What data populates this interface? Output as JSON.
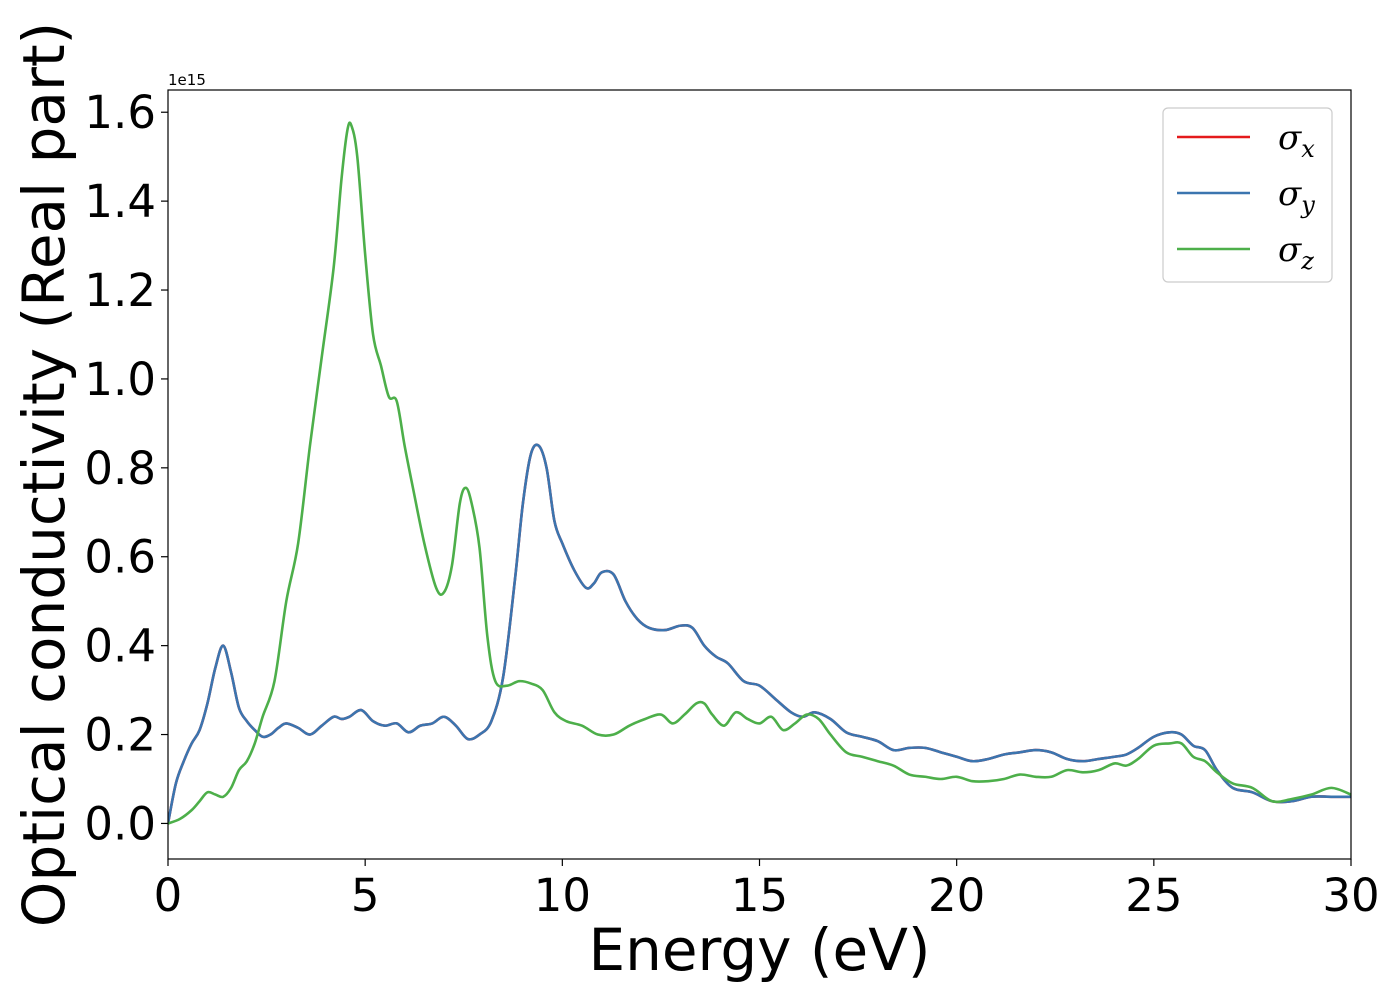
{
  "chart_data": {
    "type": "line",
    "xlabel": "Energy (eV)",
    "ylabel": "Optical conductivity (Real part)",
    "y_offset_label": "1e15",
    "xlim": [
      0,
      30
    ],
    "ylim": [
      -0.08,
      1.65
    ],
    "x_ticks": [
      0,
      5,
      10,
      15,
      20,
      25,
      30
    ],
    "y_ticks": [
      0.0,
      0.2,
      0.4,
      0.6,
      0.8,
      1.0,
      1.2,
      1.4,
      1.6
    ],
    "x_tick_labels": [
      "0",
      "5",
      "10",
      "15",
      "20",
      "25",
      "30"
    ],
    "y_tick_labels": [
      "0.0",
      "0.2",
      "0.4",
      "0.6",
      "0.8",
      "1.0",
      "1.2",
      "1.4",
      "1.6"
    ],
    "grid": false,
    "legend_position": "top-right",
    "series": [
      {
        "name": "σx",
        "symbol": "σ",
        "subscript": "x",
        "color": "#e41a1c",
        "x": [
          0,
          0.2,
          0.4,
          0.6,
          0.8,
          1.0,
          1.2,
          1.4,
          1.6,
          1.8,
          2.0,
          2.2,
          2.4,
          2.6,
          2.8,
          3.0,
          3.3,
          3.6,
          3.9,
          4.2,
          4.4,
          4.6,
          4.9,
          5.2,
          5.5,
          5.8,
          6.1,
          6.4,
          6.7,
          7.0,
          7.3,
          7.6,
          7.9,
          8.2,
          8.5,
          8.8,
          9.0,
          9.2,
          9.4,
          9.6,
          9.8,
          10.0,
          10.3,
          10.6,
          10.8,
          11.0,
          11.3,
          11.6,
          11.9,
          12.2,
          12.6,
          13.0,
          13.3,
          13.6,
          13.9,
          14.2,
          14.6,
          15.0,
          15.4,
          15.8,
          16.1,
          16.4,
          16.8,
          17.2,
          17.6,
          18.0,
          18.4,
          18.8,
          19.2,
          19.6,
          20.0,
          20.4,
          20.8,
          21.2,
          21.6,
          22.0,
          22.4,
          22.8,
          23.2,
          23.6,
          24.0,
          24.3,
          24.6,
          25.0,
          25.4,
          25.7,
          26.0,
          26.3,
          26.6,
          27.0,
          27.5,
          28.0,
          28.5,
          29.0,
          29.5,
          30.0
        ],
        "y": [
          0.0,
          0.09,
          0.14,
          0.18,
          0.21,
          0.27,
          0.35,
          0.4,
          0.34,
          0.26,
          0.23,
          0.21,
          0.195,
          0.2,
          0.215,
          0.225,
          0.215,
          0.2,
          0.22,
          0.24,
          0.235,
          0.24,
          0.255,
          0.23,
          0.22,
          0.225,
          0.205,
          0.22,
          0.225,
          0.24,
          0.22,
          0.19,
          0.2,
          0.23,
          0.33,
          0.55,
          0.72,
          0.83,
          0.85,
          0.8,
          0.68,
          0.63,
          0.57,
          0.53,
          0.54,
          0.565,
          0.56,
          0.5,
          0.46,
          0.44,
          0.435,
          0.445,
          0.44,
          0.4,
          0.375,
          0.36,
          0.32,
          0.31,
          0.28,
          0.25,
          0.24,
          0.25,
          0.235,
          0.205,
          0.195,
          0.185,
          0.165,
          0.17,
          0.17,
          0.16,
          0.15,
          0.14,
          0.145,
          0.155,
          0.16,
          0.165,
          0.16,
          0.145,
          0.14,
          0.145,
          0.15,
          0.155,
          0.17,
          0.195,
          0.205,
          0.2,
          0.175,
          0.165,
          0.12,
          0.08,
          0.07,
          0.05,
          0.05,
          0.06,
          0.06,
          0.06
        ]
      },
      {
        "name": "σy",
        "symbol": "σ",
        "subscript": "y",
        "color": "#3b75af",
        "x": [
          0,
          0.2,
          0.4,
          0.6,
          0.8,
          1.0,
          1.2,
          1.4,
          1.6,
          1.8,
          2.0,
          2.2,
          2.4,
          2.6,
          2.8,
          3.0,
          3.3,
          3.6,
          3.9,
          4.2,
          4.4,
          4.6,
          4.9,
          5.2,
          5.5,
          5.8,
          6.1,
          6.4,
          6.7,
          7.0,
          7.3,
          7.6,
          7.9,
          8.2,
          8.5,
          8.8,
          9.0,
          9.2,
          9.4,
          9.6,
          9.8,
          10.0,
          10.3,
          10.6,
          10.8,
          11.0,
          11.3,
          11.6,
          11.9,
          12.2,
          12.6,
          13.0,
          13.3,
          13.6,
          13.9,
          14.2,
          14.6,
          15.0,
          15.4,
          15.8,
          16.1,
          16.4,
          16.8,
          17.2,
          17.6,
          18.0,
          18.4,
          18.8,
          19.2,
          19.6,
          20.0,
          20.4,
          20.8,
          21.2,
          21.6,
          22.0,
          22.4,
          22.8,
          23.2,
          23.6,
          24.0,
          24.3,
          24.6,
          25.0,
          25.4,
          25.7,
          26.0,
          26.3,
          26.6,
          27.0,
          27.5,
          28.0,
          28.5,
          29.0,
          29.5,
          30.0
        ],
        "y": [
          0.0,
          0.09,
          0.14,
          0.18,
          0.21,
          0.27,
          0.35,
          0.4,
          0.34,
          0.26,
          0.23,
          0.21,
          0.195,
          0.2,
          0.215,
          0.225,
          0.215,
          0.2,
          0.22,
          0.24,
          0.235,
          0.24,
          0.255,
          0.23,
          0.22,
          0.225,
          0.205,
          0.22,
          0.225,
          0.24,
          0.22,
          0.19,
          0.2,
          0.23,
          0.33,
          0.55,
          0.72,
          0.83,
          0.85,
          0.8,
          0.68,
          0.63,
          0.57,
          0.53,
          0.54,
          0.565,
          0.56,
          0.5,
          0.46,
          0.44,
          0.435,
          0.445,
          0.44,
          0.4,
          0.375,
          0.36,
          0.32,
          0.31,
          0.28,
          0.25,
          0.24,
          0.25,
          0.235,
          0.205,
          0.195,
          0.185,
          0.165,
          0.17,
          0.17,
          0.16,
          0.15,
          0.14,
          0.145,
          0.155,
          0.16,
          0.165,
          0.16,
          0.145,
          0.14,
          0.145,
          0.15,
          0.155,
          0.17,
          0.195,
          0.205,
          0.2,
          0.175,
          0.165,
          0.12,
          0.08,
          0.07,
          0.05,
          0.05,
          0.06,
          0.06,
          0.06
        ]
      },
      {
        "name": "σz",
        "symbol": "σ",
        "subscript": "z",
        "color": "#4daf4a",
        "x": [
          0,
          0.3,
          0.6,
          0.8,
          1.0,
          1.2,
          1.4,
          1.6,
          1.8,
          2.0,
          2.2,
          2.4,
          2.7,
          3.0,
          3.3,
          3.6,
          3.9,
          4.2,
          4.4,
          4.55,
          4.65,
          4.8,
          5.0,
          5.2,
          5.4,
          5.6,
          5.8,
          6.0,
          6.2,
          6.5,
          6.8,
          7.0,
          7.2,
          7.4,
          7.55,
          7.7,
          7.9,
          8.1,
          8.3,
          8.6,
          8.9,
          9.2,
          9.5,
          9.8,
          10.1,
          10.5,
          10.9,
          11.3,
          11.7,
          12.1,
          12.5,
          12.8,
          13.1,
          13.4,
          13.6,
          13.8,
          14.1,
          14.4,
          14.7,
          15.0,
          15.3,
          15.6,
          15.9,
          16.2,
          16.5,
          16.8,
          17.2,
          17.6,
          18.0,
          18.4,
          18.8,
          19.2,
          19.6,
          20.0,
          20.4,
          20.8,
          21.2,
          21.6,
          22.0,
          22.4,
          22.8,
          23.2,
          23.6,
          24.0,
          24.3,
          24.6,
          25.0,
          25.4,
          25.7,
          26.0,
          26.3,
          26.6,
          27.0,
          27.5,
          28.0,
          28.5,
          29.0,
          29.5,
          30.0
        ],
        "y": [
          0.0,
          0.01,
          0.03,
          0.05,
          0.07,
          0.065,
          0.06,
          0.08,
          0.12,
          0.14,
          0.18,
          0.24,
          0.32,
          0.5,
          0.63,
          0.85,
          1.05,
          1.25,
          1.45,
          1.56,
          1.57,
          1.5,
          1.28,
          1.1,
          1.03,
          0.96,
          0.95,
          0.85,
          0.76,
          0.63,
          0.53,
          0.52,
          0.58,
          0.72,
          0.755,
          0.72,
          0.62,
          0.42,
          0.32,
          0.31,
          0.32,
          0.315,
          0.3,
          0.25,
          0.23,
          0.22,
          0.2,
          0.2,
          0.22,
          0.235,
          0.245,
          0.225,
          0.245,
          0.27,
          0.27,
          0.245,
          0.22,
          0.25,
          0.235,
          0.225,
          0.24,
          0.21,
          0.225,
          0.245,
          0.235,
          0.2,
          0.16,
          0.15,
          0.14,
          0.13,
          0.11,
          0.105,
          0.1,
          0.105,
          0.095,
          0.095,
          0.1,
          0.11,
          0.105,
          0.105,
          0.12,
          0.115,
          0.12,
          0.135,
          0.13,
          0.145,
          0.175,
          0.18,
          0.18,
          0.15,
          0.14,
          0.115,
          0.09,
          0.08,
          0.05,
          0.055,
          0.065,
          0.08,
          0.065
        ]
      }
    ]
  }
}
